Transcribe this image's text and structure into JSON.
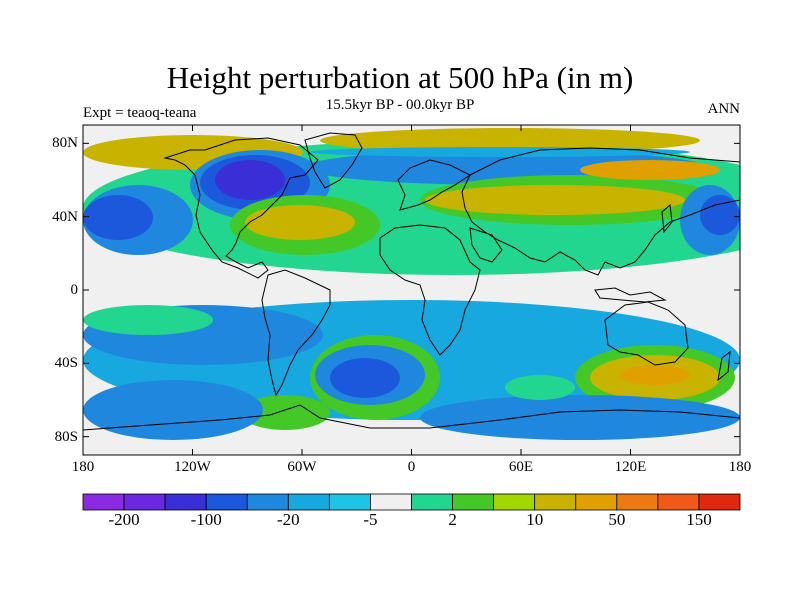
{
  "title": "Height perturbation at 500 hPa (in m)",
  "subtitle": "15.5kyr BP - 00.0kyr BP",
  "experiment_label": "Expt = teaoq-teana",
  "season_label": "ANN",
  "lat_axis": {
    "ticks": [
      {
        "value": 80,
        "label": "80N"
      },
      {
        "value": 40,
        "label": "40N"
      },
      {
        "value": 0,
        "label": "0"
      },
      {
        "value": -40,
        "label": "40S"
      },
      {
        "value": -80,
        "label": "80S"
      }
    ]
  },
  "lon_axis": {
    "ticks": [
      {
        "value": -180,
        "label": "180"
      },
      {
        "value": -120,
        "label": "120W"
      },
      {
        "value": -60,
        "label": "60W"
      },
      {
        "value": 0,
        "label": "0"
      },
      {
        "value": 60,
        "label": "60E"
      },
      {
        "value": 120,
        "label": "120E"
      },
      {
        "value": 180,
        "label": "180"
      }
    ]
  },
  "colorbar": {
    "colors": [
      "#8a2be2",
      "#6a28e0",
      "#3a2fd6",
      "#1c58dc",
      "#1f88de",
      "#16a8df",
      "#1ec5e2",
      "#f0f0f0",
      "#22d690",
      "#44c827",
      "#a2d600",
      "#c8b400",
      "#dfa000",
      "#ec7a10",
      "#f05a18",
      "#e02810"
    ],
    "labels": [
      "-200",
      "-100",
      "-20",
      "-5",
      "2",
      "10",
      "50",
      "150"
    ]
  },
  "field_colors": {
    "neg_strong": "#3a2fd6",
    "neg_mid": "#1c58dc",
    "neg_light": "#1f88de",
    "neg_faint": "#16a8df",
    "zero": "#f0f0f0",
    "pos_faint": "#22d690",
    "pos_light": "#44c827",
    "pos_mid": "#c8b400",
    "pos_strong": "#dfa000"
  }
}
